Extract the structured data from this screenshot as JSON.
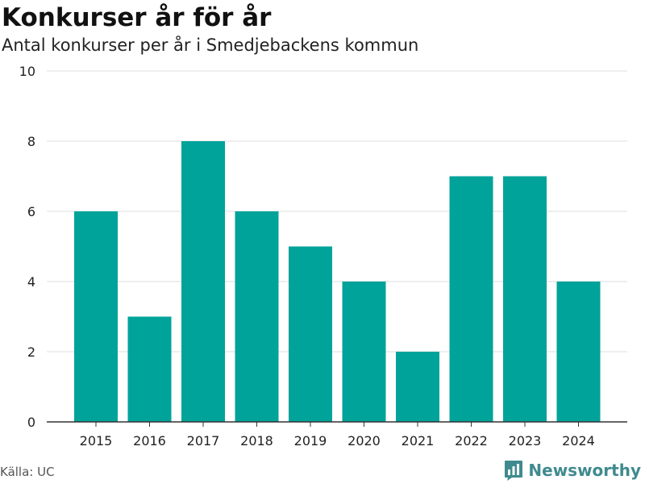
{
  "header": {
    "title": "Konkurser år för år",
    "subtitle": "Antal konkurser per år i Smedjebackens kommun"
  },
  "footer": {
    "source": "Källa: UC",
    "brand": "Newsworthy"
  },
  "colors": {
    "bar": "#00a39a",
    "grid": "#dddddd",
    "axis": "#333333",
    "brand": "#3f8a8f"
  },
  "chart_data": {
    "type": "bar",
    "title": "Konkurser år för år",
    "subtitle": "Antal konkurser per år i Smedjebackens kommun",
    "xlabel": "",
    "ylabel": "",
    "categories": [
      "2015",
      "2016",
      "2017",
      "2018",
      "2019",
      "2020",
      "2021",
      "2022",
      "2023",
      "2024"
    ],
    "values": [
      6,
      3,
      8,
      6,
      5,
      4,
      2,
      7,
      7,
      4
    ],
    "ylim": [
      0,
      10
    ],
    "yticks": [
      0,
      2,
      4,
      6,
      8,
      10
    ],
    "grid": true,
    "legend": "none"
  }
}
